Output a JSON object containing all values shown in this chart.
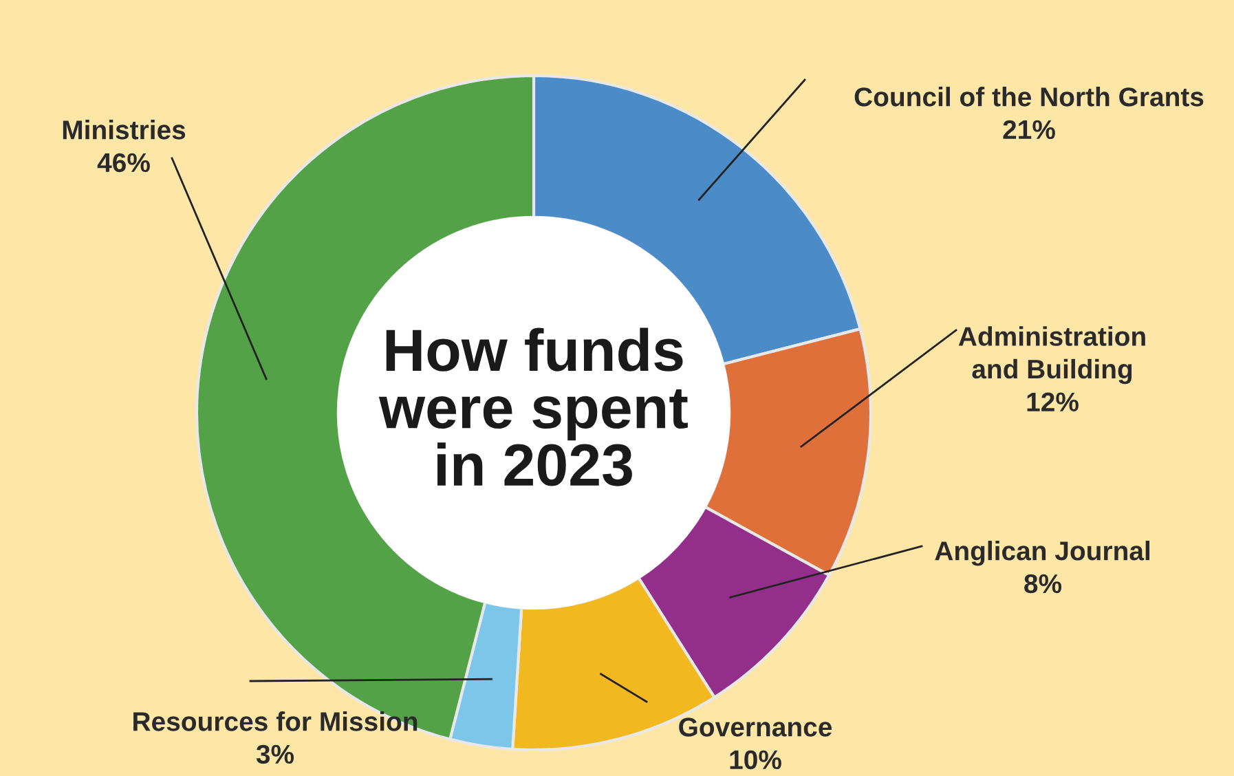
{
  "chart_data": {
    "type": "donut",
    "title": "How funds\nwere spent\nin 2023",
    "categories": [
      "Council of the North Grants",
      "Administration\nand Building",
      "Anglican Journal",
      "Governance",
      "Resources for Mission",
      "Ministries"
    ],
    "values": [
      21,
      12,
      8,
      10,
      3,
      46
    ],
    "colors": [
      "#4a8bc8",
      "#e0703a",
      "#932f8b",
      "#f2b820",
      "#7cc6ea",
      "#54a247"
    ],
    "value_labels": [
      "21%",
      "12%",
      "8%",
      "10%",
      "3%",
      "46%"
    ],
    "legend": false
  }
}
